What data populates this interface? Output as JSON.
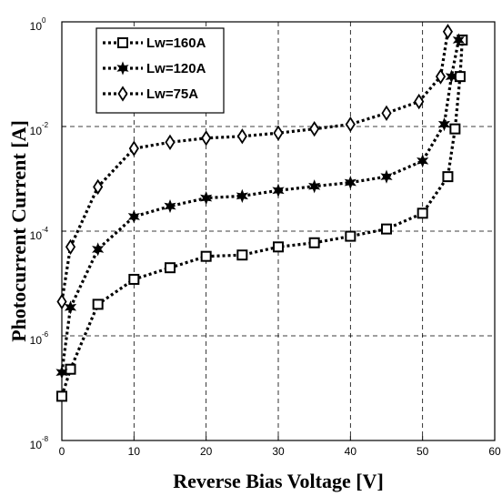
{
  "chart_data": {
    "type": "line",
    "xlabel": "Reverse Bias Voltage [V]",
    "ylabel": "Photocurrent Current [A]",
    "xlim": [
      0,
      60
    ],
    "ylim_log10": [
      -8,
      0
    ],
    "y_scale": "log",
    "grid": true,
    "legend_position": "top-left",
    "x_ticks": [
      "0",
      "10",
      "20",
      "30",
      "40",
      "50",
      "60"
    ],
    "y_ticks": [
      {
        "base": "10",
        "exp": "-8"
      },
      {
        "base": "10",
        "exp": "-6"
      },
      {
        "base": "10",
        "exp": "-4"
      },
      {
        "base": "10",
        "exp": "-2"
      },
      {
        "base": "10",
        "exp": "0"
      }
    ],
    "series": [
      {
        "name": "Lw=160A",
        "marker": "square",
        "color": "#000000",
        "x": [
          0,
          1.2,
          5,
          10,
          15,
          20,
          25,
          30,
          35,
          40,
          45,
          50,
          53.5,
          54.5,
          55.2,
          55.5
        ],
        "y": [
          7e-08,
          2.3e-07,
          4e-06,
          1.2e-05,
          2e-05,
          3.3e-05,
          3.5e-05,
          5e-05,
          6e-05,
          8e-05,
          0.00011,
          0.00022,
          0.0011,
          0.009,
          0.09,
          0.45
        ]
      },
      {
        "name": "Lw=120A",
        "marker": "star",
        "color": "#000000",
        "x": [
          0,
          1.2,
          5,
          10,
          15,
          20,
          25,
          30,
          35,
          40,
          45,
          50,
          53,
          54,
          55
        ],
        "y": [
          2e-07,
          3.5e-06,
          4.5e-05,
          0.00019,
          0.0003,
          0.00043,
          0.00047,
          0.0006,
          0.00072,
          0.00085,
          0.0011,
          0.0022,
          0.011,
          0.09,
          0.45
        ]
      },
      {
        "name": "Lw=75A",
        "marker": "diamond",
        "color": "#000000",
        "x": [
          0,
          1.2,
          5,
          10,
          15,
          20,
          25,
          30,
          35,
          40,
          45,
          49.5,
          52.5,
          53.5
        ],
        "y": [
          4.5e-06,
          5e-05,
          0.0007,
          0.0038,
          0.005,
          0.006,
          0.0065,
          0.0075,
          0.009,
          0.011,
          0.018,
          0.03,
          0.09,
          0.65
        ]
      }
    ]
  }
}
